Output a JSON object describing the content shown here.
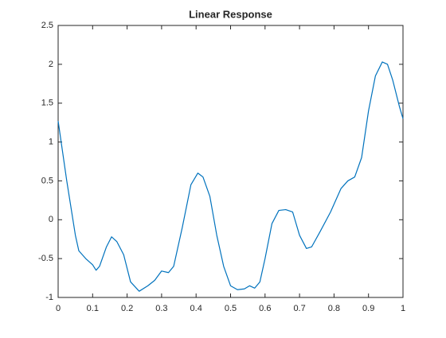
{
  "chart_data": {
    "type": "line",
    "title": "Linear Response",
    "x": [
      0,
      0.025,
      0.05,
      0.06,
      0.08,
      0.1,
      0.11,
      0.12,
      0.14,
      0.155,
      0.17,
      0.19,
      0.21,
      0.235,
      0.26,
      0.28,
      0.3,
      0.32,
      0.335,
      0.36,
      0.385,
      0.405,
      0.42,
      0.44,
      0.46,
      0.48,
      0.5,
      0.52,
      0.54,
      0.555,
      0.57,
      0.585,
      0.6,
      0.62,
      0.64,
      0.66,
      0.68,
      0.7,
      0.72,
      0.735,
      0.76,
      0.79,
      0.82,
      0.84,
      0.86,
      0.88,
      0.9,
      0.92,
      0.94,
      0.955,
      0.97,
      0.99,
      1
    ],
    "values": [
      1.27,
      0.5,
      -0.2,
      -0.4,
      -0.5,
      -0.58,
      -0.65,
      -0.6,
      -0.35,
      -0.22,
      -0.28,
      -0.45,
      -0.8,
      -0.92,
      -0.85,
      -0.78,
      -0.66,
      -0.68,
      -0.6,
      -0.1,
      0.45,
      0.6,
      0.55,
      0.3,
      -0.2,
      -0.6,
      -0.85,
      -0.9,
      -0.89,
      -0.85,
      -0.88,
      -0.8,
      -0.5,
      -0.05,
      0.12,
      0.13,
      0.1,
      -0.2,
      -0.37,
      -0.35,
      -0.15,
      0.1,
      0.4,
      0.5,
      0.55,
      0.8,
      1.4,
      1.85,
      2.03,
      2.0,
      1.8,
      1.45,
      1.3
    ],
    "color": "#0072bd",
    "xlim": [
      0,
      1
    ],
    "xticks": [
      0,
      0.1,
      0.2,
      0.3,
      0.4,
      0.5,
      0.6,
      0.7,
      0.8,
      0.9,
      1
    ],
    "ylim": [
      -1,
      2.5
    ],
    "yticks": [
      -1,
      -0.5,
      0,
      0.5,
      1,
      1.5,
      2,
      2.5
    ]
  }
}
